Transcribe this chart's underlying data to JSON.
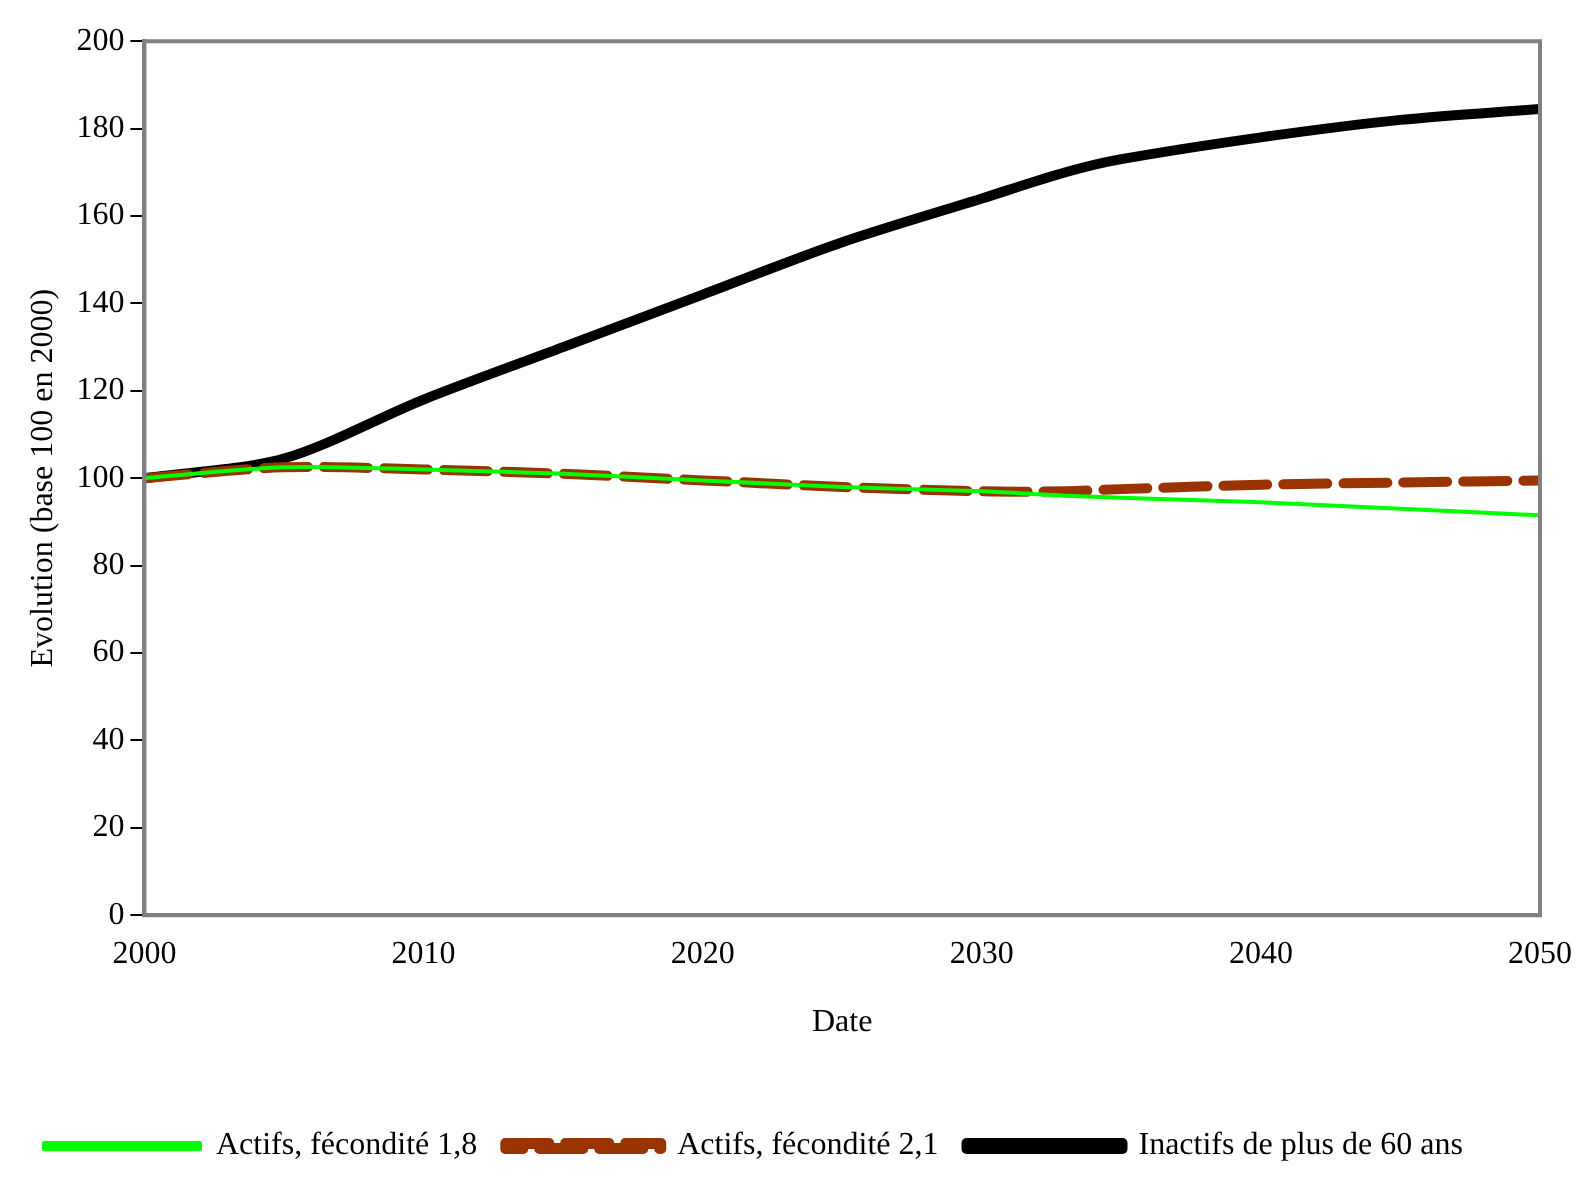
{
  "chart_data": {
    "type": "line",
    "xlabel": "Date",
    "ylabel": "Evolution (base 100 en 2000)",
    "x": [
      2000,
      2005,
      2010,
      2015,
      2020,
      2025,
      2030,
      2033,
      2035,
      2040,
      2045,
      2050
    ],
    "series": [
      {
        "name": "Actifs, fécondité 1,8",
        "color": "#00ff00",
        "line_style": "solid",
        "values": [
          100,
          102.5,
          102,
          101,
          99.5,
          98,
          97,
          96,
          95.5,
          94.5,
          93,
          91.5
        ]
      },
      {
        "name": "Actifs, fécondité 2,1",
        "color": "#993300",
        "line_style": "dashed",
        "values": [
          100,
          102.5,
          102,
          101,
          99.5,
          98,
          97,
          97,
          97.5,
          98.5,
          99,
          99.5
        ]
      },
      {
        "name": "Inactifs de plus de 60 ans",
        "color": "#000000",
        "line_style": "solid",
        "values": [
          100,
          104.5,
          118,
          130,
          142,
          154,
          164,
          170,
          173,
          178,
          182,
          184.5
        ]
      }
    ],
    "xlim": [
      2000,
      2050
    ],
    "xticks": [
      2000,
      2010,
      2020,
      2030,
      2040,
      2050
    ],
    "ylim": [
      0,
      200
    ],
    "yticks": [
      0,
      20,
      40,
      60,
      80,
      100,
      120,
      140,
      160,
      180,
      200
    ],
    "grid": false,
    "legend": "bottom",
    "marker": "none"
  }
}
